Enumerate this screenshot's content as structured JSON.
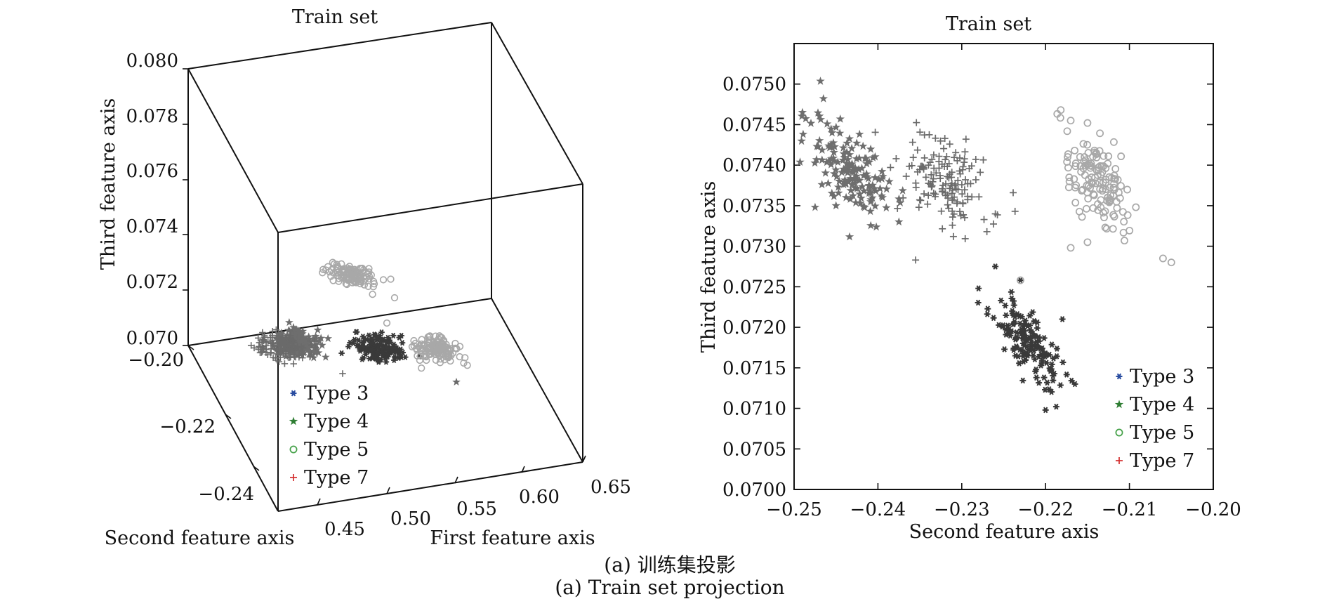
{
  "figure": {
    "caption_cn": "(a) 训练集投影",
    "caption_en": "(a) Train set projection"
  },
  "legend": [
    {
      "label": "Type 3",
      "marker": "asterisk",
      "color": "#2a4da0",
      "plot_color": "#3a3a3a"
    },
    {
      "label": "Type 4",
      "marker": "star",
      "color": "#2e7d32",
      "plot_color": "#6e6e6e"
    },
    {
      "label": "Type 5",
      "marker": "circle",
      "color": "#43a047",
      "plot_color": "#a8a8a8"
    },
    {
      "label": "Type 7",
      "marker": "plus",
      "color": "#d32f2f",
      "plot_color": "#6a6a6a"
    }
  ],
  "chart_data": [
    {
      "type": "scatter",
      "projection": "3d",
      "title": "Train set",
      "xlabel": "First feature axis",
      "ylabel": "Second feature axis",
      "zlabel": "Third feature axis",
      "xticks": [
        "0.45",
        "0.50",
        "0.55",
        "0.60",
        "0.65"
      ],
      "yticks": [
        "−0.20",
        "−0.22",
        "−0.24"
      ],
      "zticks": [
        "0.070",
        "0.072",
        "0.074",
        "0.076",
        "0.078",
        "0.080"
      ],
      "xlim": [
        0.43,
        0.65
      ],
      "ylim": [
        -0.25,
        -0.2
      ],
      "zlim": [
        0.07,
        0.08
      ],
      "legend_position": "bottom-left",
      "series": [
        {
          "name": "Type 3",
          "marker": "asterisk",
          "center": [
            0.505,
            -0.222,
            0.0718
          ],
          "spread": [
            0.01,
            0.006,
            0.0004
          ],
          "count": 150
        },
        {
          "name": "Type 4",
          "marker": "star",
          "center": [
            0.445,
            -0.242,
            0.074
          ],
          "spread": [
            0.012,
            0.006,
            0.0006
          ],
          "count": 150
        },
        {
          "name": "Type 5",
          "marker": "circle",
          "center": [
            0.56,
            -0.215,
            0.0738
          ],
          "spread": [
            0.012,
            0.006,
            0.0006
          ],
          "count": 130
        },
        {
          "name": "Type 7",
          "marker": "plus",
          "center": [
            0.47,
            -0.233,
            0.0738
          ],
          "spread": [
            0.012,
            0.006,
            0.0006
          ],
          "count": 140
        }
      ]
    },
    {
      "type": "scatter",
      "title": "Train set",
      "xlabel": "Second feature axis",
      "ylabel": "Third feature axis",
      "xlim": [
        -0.25,
        -0.2
      ],
      "ylim": [
        0.07,
        0.0755
      ],
      "xticks": [
        "−0.25",
        "−0.24",
        "−0.23",
        "−0.22",
        "−0.21",
        "−0.20"
      ],
      "yticks": [
        "0.0700",
        "0.0705",
        "0.0710",
        "0.0715",
        "0.0720",
        "0.0725",
        "0.0730",
        "0.0735",
        "0.0740",
        "0.0745",
        "0.0750"
      ],
      "legend_position": "bottom-right",
      "series": [
        {
          "name": "Type 3",
          "marker": "asterisk",
          "center": [
            -0.222,
            0.0718
          ],
          "spread": [
            0.0022,
            0.00028
          ],
          "corr": -0.75,
          "count": 150,
          "extremes": [
            [
              -0.226,
              0.07275
            ],
            [
              -0.223,
              0.07258
            ],
            [
              -0.218,
              0.0721
            ],
            [
              -0.22,
              0.07098
            ],
            [
              -0.2165,
              0.0713
            ],
            [
              -0.228,
              0.07248
            ]
          ]
        },
        {
          "name": "Type 4",
          "marker": "star",
          "center": [
            -0.243,
            0.0739
          ],
          "spread": [
            0.0025,
            0.0003
          ],
          "corr": -0.55,
          "count": 150,
          "extremes": [
            [
              -0.249,
              0.07465
            ],
            [
              -0.2465,
              0.07482
            ],
            [
              -0.2475,
              0.07348
            ],
            [
              -0.245,
              0.0735
            ],
            [
              -0.2375,
              0.0733
            ]
          ]
        },
        {
          "name": "Type 5",
          "marker": "circle",
          "center": [
            -0.214,
            0.0738
          ],
          "spread": [
            0.002,
            0.00028
          ],
          "corr": -0.45,
          "count": 130,
          "extremes": [
            [
              -0.217,
              0.07455
            ],
            [
              -0.215,
              0.07452
            ],
            [
              -0.206,
              0.07285
            ],
            [
              -0.205,
              0.0728
            ],
            [
              -0.223,
              0.07258
            ],
            [
              -0.217,
              0.07298
            ],
            [
              -0.215,
              0.07305
            ]
          ]
        },
        {
          "name": "Type 7",
          "marker": "plus",
          "center": [
            -0.232,
            0.0738
          ],
          "spread": [
            0.0025,
            0.0003
          ],
          "corr": -0.35,
          "count": 140,
          "extremes": [
            [
              -0.2355,
              0.07283
            ],
            [
              -0.231,
              0.07312
            ],
            [
              -0.227,
              0.07318
            ],
            [
              -0.2295,
              0.07432
            ],
            [
              -0.226,
              0.0734
            ]
          ]
        }
      ]
    }
  ]
}
